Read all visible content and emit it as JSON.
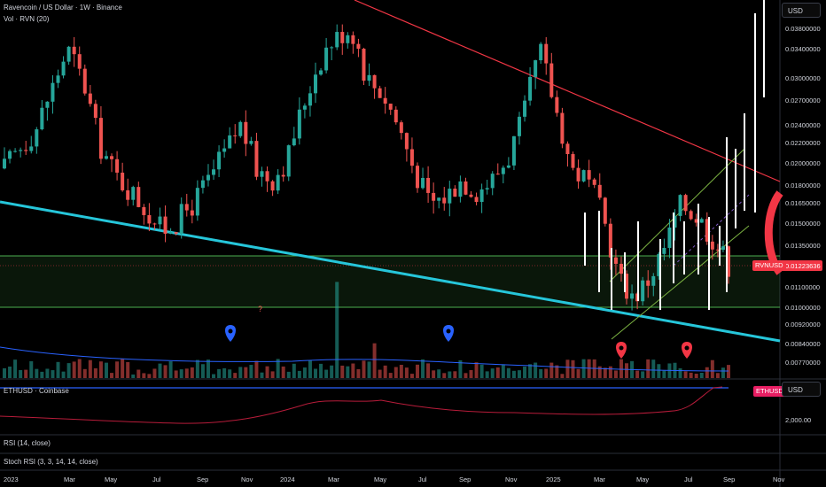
{
  "header": {
    "title": "Ravencoin / US Dollar · 1W · Binance",
    "volume_label": "Vol · RVN (20)",
    "currency": "USD"
  },
  "price_axis": {
    "ticks": [
      "0.03800000",
      "0.03400000",
      "0.03000000",
      "0.02700000",
      "0.02400000",
      "0.02200000",
      "0.02000000",
      "0.01800000",
      "0.01650000",
      "0.01500000",
      "0.01350000",
      "0.01223636",
      "0.01100000",
      "0.01000000",
      "0.00920000",
      "0.00840000",
      "0.00770000"
    ]
  },
  "last_price": {
    "symbol": "RVNUSD",
    "value": "0.01223636",
    "color": "#f23645"
  },
  "annotation_question": "?",
  "eth_panel": {
    "label": "ETHUSD · Coinbase",
    "tag": "ETHUSD",
    "currency": "USD",
    "tick": "2,000.00"
  },
  "rsi_panel": {
    "label": "RSI (14, close)"
  },
  "stoch_panel": {
    "label": "Stoch RSI (3, 3, 14, 14, close)"
  },
  "time_axis": {
    "labels": [
      "2023",
      "Mar",
      "May",
      "Jul",
      "Sep",
      "Nov",
      "2024",
      "Mar",
      "May",
      "Jul",
      "Sep",
      "Nov",
      "2025",
      "Mar",
      "May",
      "Jul",
      "Sep",
      "Nov"
    ]
  },
  "colors": {
    "up": "#26a69a",
    "down": "#ef5350",
    "trendline": "#f23645",
    "support": "#26c6da",
    "zone": "#4caf50",
    "pin_blue": "#2962ff",
    "pin_red": "#f23645"
  },
  "chart_data": {
    "type": "candlestick",
    "title": "Ravencoin / US Dollar · 1W · Binance",
    "series": [
      {
        "name": "Ravencoin / US Dollar",
        "trend": [
          0.0195,
          0.0215,
          0.0235,
          0.0285,
          0.034,
          0.0295,
          0.022,
          0.019,
          0.0175,
          0.016,
          0.0145,
          0.0152,
          0.0165,
          0.0185,
          0.021,
          0.024,
          0.0195,
          0.0185,
          0.0205,
          0.0265,
          0.0325,
          0.036,
          0.038,
          0.03,
          0.028,
          0.024,
          0.0195,
          0.0165,
          0.017,
          0.0185,
          0.0175,
          0.0185,
          0.0205,
          0.025,
          0.034,
          0.026,
          0.0195,
          0.0185,
          0.0155,
          0.0115,
          0.0105,
          0.0115,
          0.0135,
          0.0165,
          0.0155,
          0.014,
          0.0123
        ]
      },
      {
        "name": "ETHUSD · Coinbase",
        "ticks": [
          2000
        ]
      }
    ],
    "ylim": [
      0.0073,
      0.04
    ]
  }
}
